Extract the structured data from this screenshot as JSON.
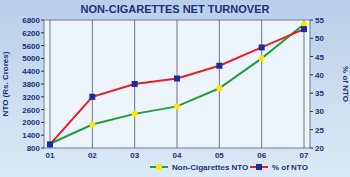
{
  "chart_data": {
    "type": "line",
    "title": "NON-CIGARETTES NET TURNOVER",
    "y_label": "NTO (Rs. Crores)",
    "y2_label": "% of NTO",
    "categories": [
      "01",
      "02",
      "03",
      "04",
      "05",
      "06",
      "07"
    ],
    "series": [
      {
        "name": "Non-Cigarettes NTO",
        "color": "#1f9e3a",
        "marker": "circle",
        "values": [
          1000,
          1900,
          2400,
          2750,
          3600,
          5000,
          6600
        ]
      },
      {
        "name": "% of NTO",
        "color": "#e3202a",
        "marker": "square",
        "axis": "y2",
        "values": [
          21,
          34,
          37.5,
          39,
          42.5,
          47.5,
          52.5
        ]
      }
    ],
    "ylim": [
      800,
      6800
    ],
    "yticks": [
      800,
      1400,
      2000,
      2600,
      3200,
      3800,
      4400,
      5000,
      5600,
      6200,
      6800
    ],
    "y2lim": [
      20,
      55
    ],
    "y2ticks": [
      20,
      25,
      30,
      35,
      40,
      45,
      50,
      55
    ],
    "grid": true,
    "legend": "bottom"
  }
}
